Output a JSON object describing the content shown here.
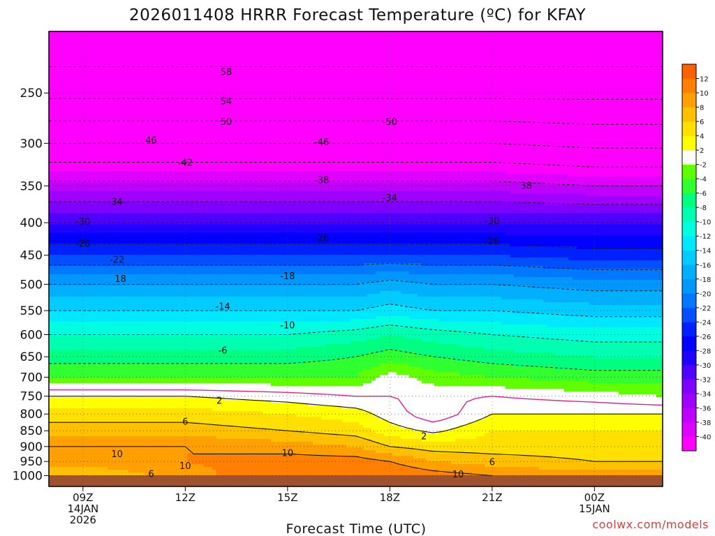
{
  "chart_data": {
    "type": "heatmap",
    "title": "2026011408 HRRR Forecast Temperature (ºC) for KFAY",
    "xlabel": "Forecast Time (UTC)",
    "ylabel": "",
    "x_ticks": [
      {
        "hour": 9,
        "lines": [
          "09Z",
          "14JAN",
          "2026"
        ]
      },
      {
        "hour": 12,
        "lines": [
          "12Z"
        ]
      },
      {
        "hour": 15,
        "lines": [
          "15Z"
        ]
      },
      {
        "hour": 18,
        "lines": [
          "18Z"
        ]
      },
      {
        "hour": 21,
        "lines": [
          "21Z"
        ]
      },
      {
        "hour": 24,
        "lines": [
          "00Z",
          "15JAN"
        ]
      }
    ],
    "x_range_hours": [
      8,
      26
    ],
    "y_ticks": [
      250,
      300,
      350,
      400,
      450,
      500,
      550,
      600,
      650,
      700,
      750,
      800,
      850,
      900,
      950,
      1000
    ],
    "y_range_hPa": [
      200,
      1040
    ],
    "y_scale": "log",
    "colorbar": {
      "levels": [
        -40,
        -38,
        -36,
        -34,
        -32,
        -30,
        -28,
        -26,
        -24,
        -22,
        -20,
        -18,
        -16,
        -14,
        -12,
        -10,
        -8,
        -6,
        -4,
        -2,
        2,
        4,
        6,
        8,
        10,
        12
      ],
      "colors": [
        "#ff00ff",
        "#e000ff",
        "#c000ff",
        "#a000ff",
        "#8000ff",
        "#5000ff",
        "#2000ff",
        "#0000ff",
        "#0020ff",
        "#0050ff",
        "#0078ff",
        "#0098ff",
        "#00b0ff",
        "#00ccff",
        "#00e8ff",
        "#00ffe0",
        "#00ffb0",
        "#00ff80",
        "#30ff30",
        "#60ff00",
        "#ffffff",
        "#ffff00",
        "#ffe000",
        "#ffc000",
        "#ffa000",
        "#ff8000",
        "#ff6000"
      ]
    },
    "profile_hours": [
      8,
      9,
      12,
      15,
      17,
      18,
      19.3,
      21,
      24,
      26
    ],
    "profile_pressure": [
      200,
      250,
      300,
      350,
      400,
      450,
      500,
      550,
      600,
      650,
      700,
      750,
      800,
      850,
      900,
      950,
      1000
    ],
    "temperature": [
      [
        -62,
        -55,
        -46,
        -37,
        -30,
        -24,
        -18,
        -14,
        -10,
        -7,
        -4,
        2,
        5,
        7,
        10,
        9,
        6
      ],
      [
        -62,
        -55,
        -46,
        -37,
        -30,
        -24,
        -18,
        -14,
        -10,
        -7,
        -4,
        2,
        5,
        7,
        10,
        9,
        6
      ],
      [
        -62,
        -55,
        -46,
        -37,
        -30,
        -24,
        -18,
        -14,
        -10,
        -7,
        -4,
        2,
        5,
        7,
        10,
        10,
        9
      ],
      [
        -62,
        -55,
        -46,
        -37,
        -30,
        -24,
        -18,
        -14,
        -10,
        -7,
        -4,
        1,
        4,
        6,
        9,
        11,
        12
      ],
      [
        -62,
        -55,
        -46,
        -37,
        -30,
        -24,
        -18,
        -14,
        -9,
        -6,
        -4,
        0,
        3,
        5,
        8,
        11,
        12
      ],
      [
        -62,
        -55,
        -46,
        -37,
        -30,
        -24,
        -17,
        -13,
        -8,
        -5,
        -1,
        0,
        1,
        3,
        6,
        10,
        12
      ],
      [
        -62,
        -55,
        -46,
        -37,
        -30,
        -24,
        -18,
        -14,
        -9,
        -6,
        -3,
        -0.5,
        -1.5,
        1.5,
        5,
        8,
        11
      ],
      [
        -62,
        -55,
        -46,
        -37,
        -30,
        -24,
        -18,
        -14,
        -10,
        -7,
        -4,
        0,
        2,
        4,
        5,
        7,
        10
      ],
      [
        -62,
        -55,
        -47,
        -38,
        -30,
        -25,
        -19,
        -15,
        -11,
        -8,
        -5,
        -1,
        2,
        4,
        5,
        6,
        9
      ],
      [
        -62,
        -55,
        -47,
        -38,
        -30,
        -25,
        -19,
        -15,
        -11,
        -8,
        -5,
        -2,
        2,
        4,
        5,
        6,
        9
      ]
    ],
    "contour_labels": [
      {
        "value": "58",
        "hour": 13.2,
        "p": 232
      },
      {
        "value": "54",
        "hour": 13.2,
        "p": 258
      },
      {
        "value": "50",
        "hour": 13.2,
        "p": 278
      },
      {
        "value": "-50",
        "hour": 18.0,
        "p": 278
      },
      {
        "value": "46",
        "hour": 11.0,
        "p": 297
      },
      {
        "value": "-46",
        "hour": 16.0,
        "p": 299
      },
      {
        "value": "-42",
        "hour": 12.0,
        "p": 322
      },
      {
        "value": "-38",
        "hour": 16.0,
        "p": 343
      },
      {
        "value": "38",
        "hour": 22.0,
        "p": 350
      },
      {
        "value": "-34",
        "hour": 18.0,
        "p": 366
      },
      {
        "value": "34",
        "hour": 10.0,
        "p": 371
      },
      {
        "value": "-30",
        "hour": 9.0,
        "p": 399
      },
      {
        "value": "-30",
        "hour": 21.0,
        "p": 398
      },
      {
        "value": "-26",
        "hour": 16.0,
        "p": 423
      },
      {
        "value": "-26",
        "hour": 9.0,
        "p": 432
      },
      {
        "value": "-26",
        "hour": 21.0,
        "p": 428
      },
      {
        "value": "-22",
        "hour": 10.0,
        "p": 458
      },
      {
        "value": "-18",
        "hour": 15.0,
        "p": 486
      },
      {
        "value": "18",
        "hour": 10.1,
        "p": 491
      },
      {
        "value": "-14",
        "hour": 13.1,
        "p": 542
      },
      {
        "value": "-10",
        "hour": 15.0,
        "p": 581
      },
      {
        "value": "-6",
        "hour": 13.1,
        "p": 636
      },
      {
        "value": "2",
        "hour": 13.0,
        "p": 763
      },
      {
        "value": "6",
        "hour": 12.0,
        "p": 823
      },
      {
        "value": "2",
        "hour": 19.0,
        "p": 868
      },
      {
        "value": "10",
        "hour": 10.0,
        "p": 926
      },
      {
        "value": "10",
        "hour": 15.0,
        "p": 922
      },
      {
        "value": "6",
        "hour": 21.0,
        "p": 953
      },
      {
        "value": "10",
        "hour": 12.0,
        "p": 967
      },
      {
        "value": "10",
        "hour": 20.0,
        "p": 996
      },
      {
        "value": "6",
        "hour": 11.0,
        "p": 995
      }
    ]
  },
  "credit": "coolwx.com/models"
}
